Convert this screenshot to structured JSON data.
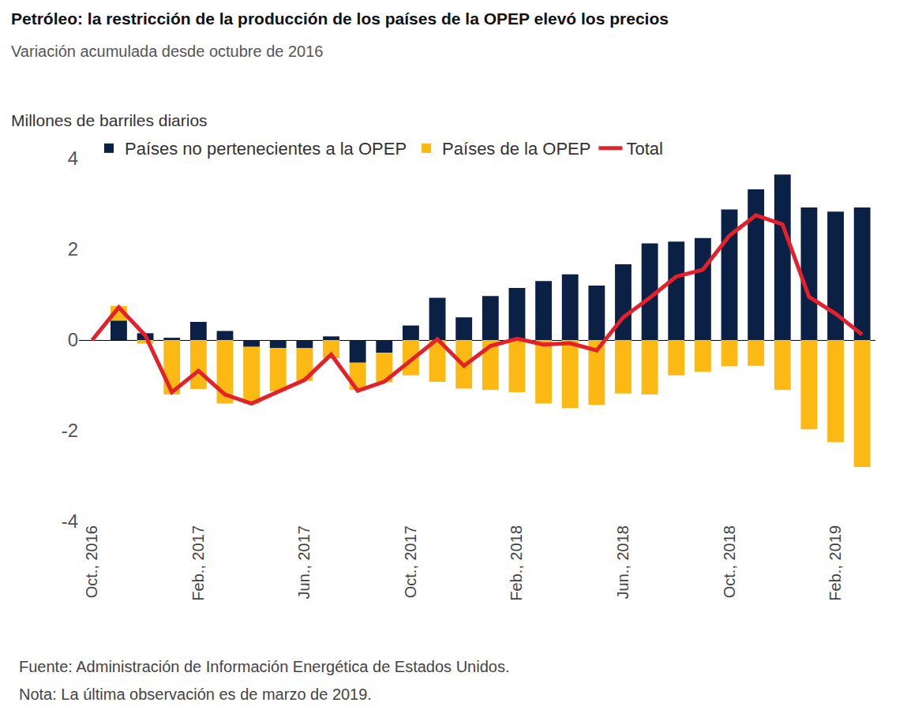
{
  "chart_data": {
    "type": "bar",
    "title": "Petróleo: la restricción de la producción de los países de la OPEP elevó los precios",
    "subtitle": "Variación acumulada desde octubre de 2016",
    "ylabel": "Millones de barriles diarios",
    "source": "Fuente: Administración de Información Energética de Estados Unidos.",
    "note": "Nota: La última observación es de marzo de 2019.",
    "categories": [
      "Oct., 2016",
      null,
      null,
      null,
      "Feb., 2017",
      null,
      null,
      null,
      "Jun., 2017",
      null,
      null,
      null,
      "Oct., 2017",
      null,
      null,
      null,
      "Feb., 2018",
      null,
      null,
      null,
      "Jun., 2018",
      null,
      null,
      null,
      "Oct., 2018",
      null,
      null,
      null,
      "Feb., 2019",
      null
    ],
    "series": [
      {
        "name": "Países no pertenecientes a la OPEP",
        "color": "#0b2045",
        "values": [
          0,
          0.43,
          0.15,
          0.05,
          0.4,
          0.2,
          -0.15,
          -0.18,
          -0.18,
          0.08,
          -0.5,
          -0.28,
          0.32,
          0.93,
          0.5,
          0.97,
          1.15,
          1.3,
          1.45,
          1.2,
          1.67,
          2.13,
          2.17,
          2.25,
          2.88,
          3.32,
          3.65,
          2.92,
          2.83,
          2.92
        ]
      },
      {
        "name": "Países de la OPEP",
        "color": "#fdb913",
        "values": [
          0,
          0.32,
          -0.08,
          -1.2,
          -1.08,
          -1.4,
          -1.25,
          -0.95,
          -0.72,
          -0.4,
          -0.6,
          -0.65,
          -0.78,
          -0.92,
          -1.07,
          -1.1,
          -1.15,
          -1.4,
          -1.5,
          -1.43,
          -1.18,
          -1.2,
          -0.78,
          -0.7,
          -0.58,
          -0.57,
          -1.1,
          -1.97,
          -2.25,
          -2.8
        ]
      },
      {
        "name": "Total",
        "type": "line",
        "color": "#e4202a",
        "values": [
          0,
          0.72,
          0.1,
          -1.15,
          -0.68,
          -1.2,
          -1.4,
          -1.15,
          -0.88,
          -0.32,
          -1.12,
          -0.92,
          -0.46,
          0.02,
          -0.57,
          -0.13,
          0.03,
          -0.1,
          -0.07,
          -0.23,
          0.5,
          0.93,
          1.4,
          1.55,
          2.3,
          2.75,
          2.55,
          0.95,
          0.58,
          0.12
        ]
      }
    ],
    "ylim": [
      -4,
      4
    ],
    "yticks": [
      -4,
      -2,
      0,
      2,
      4
    ],
    "grid": false,
    "stacked": true,
    "legend": "top"
  }
}
